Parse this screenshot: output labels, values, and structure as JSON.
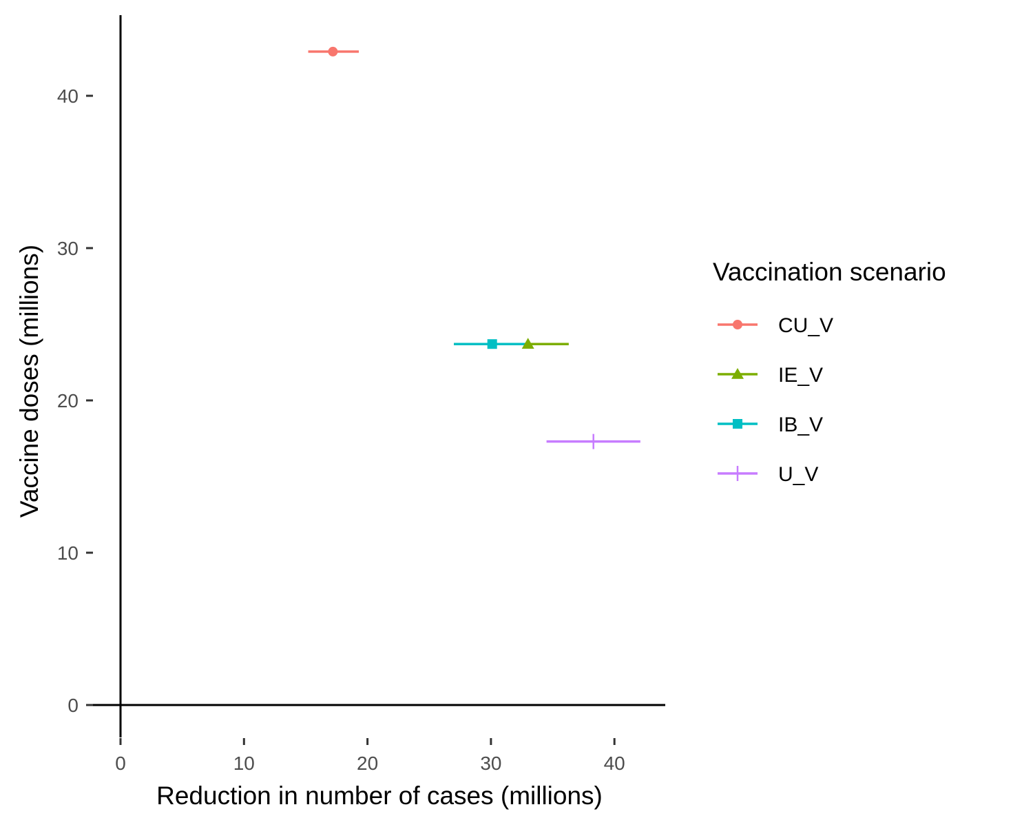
{
  "chart_data": {
    "type": "scatter",
    "xlabel": "Reduction in number of cases (millions)",
    "ylabel": "Vaccine doses (millions)",
    "xlim": [
      0,
      44
    ],
    "ylim": [
      0,
      45
    ],
    "x_ticks": [
      0,
      10,
      20,
      30,
      40
    ],
    "y_ticks": [
      0,
      10,
      20,
      30,
      40
    ],
    "x_tick_labels": [
      "0",
      "10",
      "20",
      "30",
      "40"
    ],
    "y_tick_labels": [
      "0",
      "10",
      "20",
      "30",
      "40"
    ],
    "grid": false,
    "legend": {
      "title": "Vaccination scenario",
      "placement": "right"
    },
    "series": [
      {
        "name": "CU_V",
        "color": "#F8766D",
        "shape": "circle",
        "x": 17.2,
        "x_low": 15.2,
        "x_high": 19.3,
        "y": 42.9
      },
      {
        "name": "IE_V",
        "color": "#7CAE00",
        "shape": "triangle",
        "x": 33.0,
        "x_low": 27.0,
        "x_high": 36.3,
        "y": 23.7
      },
      {
        "name": "IB_V",
        "color": "#00BFC4",
        "shape": "square",
        "x": 30.1,
        "x_low": 27.0,
        "x_high": 33.0,
        "y": 23.7
      },
      {
        "name": "U_V",
        "color": "#C77CFF",
        "shape": "plus",
        "x": 38.3,
        "x_low": 34.5,
        "x_high": 42.1,
        "y": 17.3
      }
    ]
  }
}
